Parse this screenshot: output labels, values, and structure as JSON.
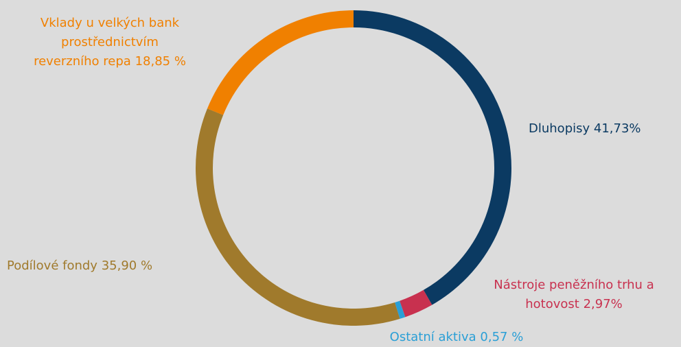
{
  "chart_data": {
    "type": "donut",
    "categories": [
      "Dluhopisy",
      "Nástroje peněžního trhu a\nhotovost",
      "Ostatní aktiva",
      "Podílové fondy",
      "Vklady u velkých bank\nprostřednictvím\nreverzního repa"
    ],
    "values": [
      41.73,
      2.97,
      0.57,
      35.9,
      18.85
    ],
    "value_labels": [
      "41,73%",
      "2,97%",
      "0,57 %",
      "35,90 %",
      "18,85 %"
    ],
    "colors": [
      "#0b3a62",
      "#c8314f",
      "#2a9fd6",
      "#a07a2c",
      "#f08000"
    ]
  }
}
